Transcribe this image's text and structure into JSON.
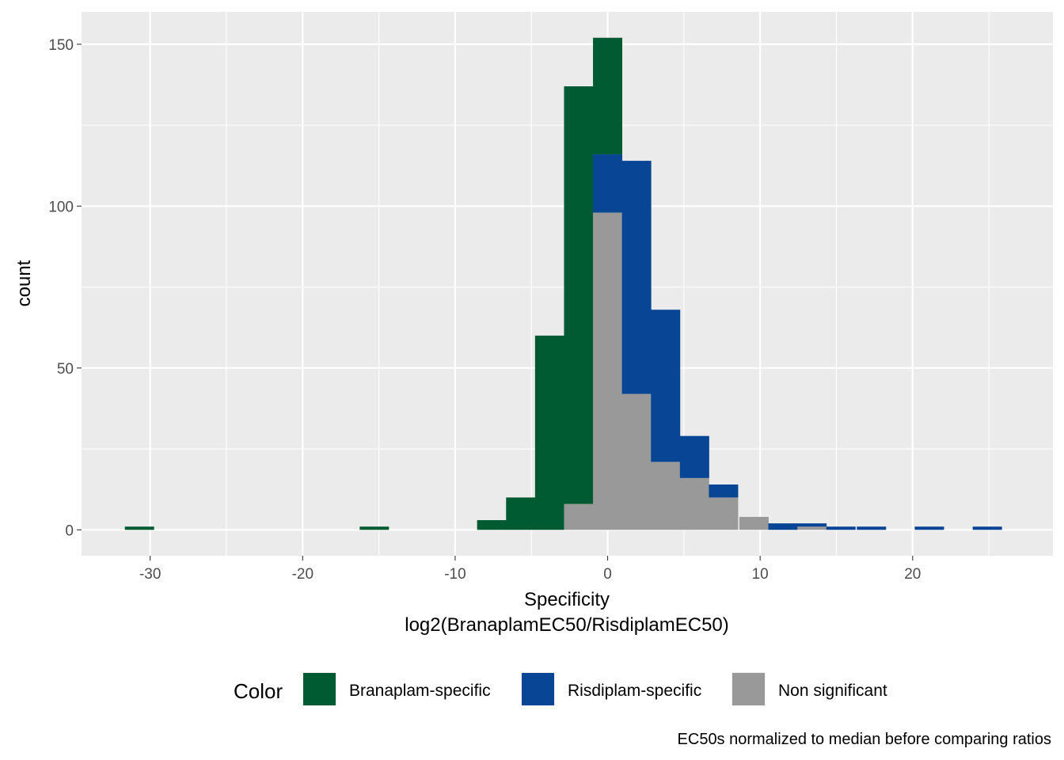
{
  "chart_data": {
    "type": "bar",
    "subtype": "stacked-histogram",
    "x_title_line1": "Specificity",
    "x_title_line2": "log2(BranaplamEC50/RisdiplamEC50)",
    "y_title": "count",
    "caption": "EC50s normalized to median before comparing ratios",
    "legend_title": "Color",
    "legend_position": "bottom",
    "grid": true,
    "xlim": [
      -34.5,
      29.2
    ],
    "ylim": [
      -8,
      160
    ],
    "x_ticks": [
      -30,
      -20,
      -10,
      0,
      10,
      20
    ],
    "x_tick_labels": [
      "-30",
      "-20",
      "-10",
      "0",
      "10",
      "20"
    ],
    "y_ticks": [
      0,
      50,
      100,
      150
    ],
    "y_tick_labels": [
      "0",
      "50",
      "100",
      "150"
    ],
    "bin_width": 1.92,
    "bin_centers": [
      -30.7,
      -15.3,
      -7.6,
      -5.7,
      -3.8,
      -1.9,
      0,
      1.9,
      3.8,
      5.7,
      7.6,
      9.6,
      11.5,
      13.4,
      15.3,
      17.3,
      21.1,
      24.9
    ],
    "series": [
      {
        "name": "Non significant",
        "color": "#999999",
        "values": [
          0,
          0,
          0,
          0,
          0,
          8,
          98,
          42,
          21,
          16,
          10,
          4,
          0,
          1,
          0,
          0,
          0,
          0
        ]
      },
      {
        "name": "Risdiplam-specific",
        "color": "#084594",
        "values": [
          0,
          0,
          0,
          0,
          0,
          0,
          18,
          72,
          47,
          13,
          4,
          0,
          2,
          1,
          1,
          1,
          1,
          1
        ]
      },
      {
        "name": "Branaplam-specific",
        "color": "#005a32",
        "values": [
          1,
          1,
          3,
          10,
          60,
          129,
          36,
          0,
          0,
          0,
          0,
          0,
          0,
          0,
          0,
          0,
          0,
          0
        ]
      }
    ],
    "legend_order": [
      "Branaplam-specific",
      "Risdiplam-specific",
      "Non significant"
    ],
    "panel_background": "#ebebeb",
    "grid_color": "#ffffff"
  }
}
